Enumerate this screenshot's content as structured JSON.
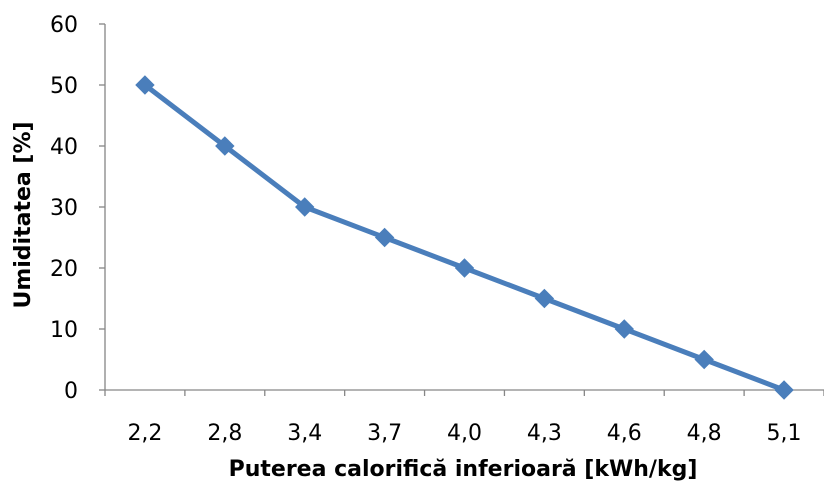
{
  "chart_data": {
    "type": "line",
    "title": "",
    "xlabel": "Puterea calorifică inferioară [kWh/kg]",
    "ylabel": "Umiditatea [%]",
    "categories": [
      "2,2",
      "2,8",
      "3,4",
      "3,7",
      "4,0",
      "4,3",
      "4,6",
      "4,8",
      "5,1"
    ],
    "series": [
      {
        "values": [
          50,
          40,
          30,
          25,
          20,
          15,
          10,
          5,
          0
        ],
        "color": "#4a7ebb"
      }
    ],
    "ylim": [
      0,
      60
    ],
    "yticks": [
      "0",
      "10",
      "20",
      "30",
      "40",
      "50",
      "60"
    ],
    "grid": false,
    "legend": "none",
    "marker": "diamond"
  }
}
